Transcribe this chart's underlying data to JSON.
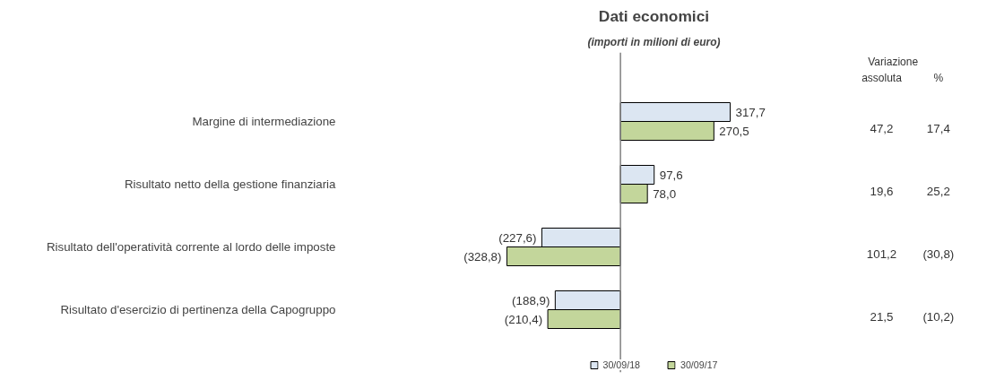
{
  "chart_data": {
    "type": "bar",
    "orientation": "horizontal",
    "title": "Dati economici",
    "subtitle": "(importi in milioni di euro)",
    "categories": [
      "Margine di intermediazione",
      "Risultato netto della gestione finanziaria",
      "Risultato dell'operatività corrente al lordo delle imposte",
      "Risultato d'esercizio di pertinenza della Capogruppo"
    ],
    "series": [
      {
        "name": "30/09/18",
        "color": "#dce6f2",
        "values": [
          317.7,
          97.6,
          -227.6,
          -188.9
        ],
        "value_labels": [
          "317,7",
          "97,6",
          "(227,6)",
          "(188,9)"
        ]
      },
      {
        "name": "30/09/17",
        "color": "#c3d69b",
        "values": [
          270.5,
          78.0,
          -328.8,
          -210.4
        ],
        "value_labels": [
          "270,5",
          "78,0",
          "(328,8)",
          "(210,4)"
        ]
      }
    ],
    "legend": "bottom",
    "annotations": [
      "Variazione",
      "assoluta",
      "%",
      "47,2",
      "17,4",
      "19,6",
      "25,2",
      "101,2",
      "(30,8)",
      "21,5",
      "(10,2)"
    ]
  }
}
